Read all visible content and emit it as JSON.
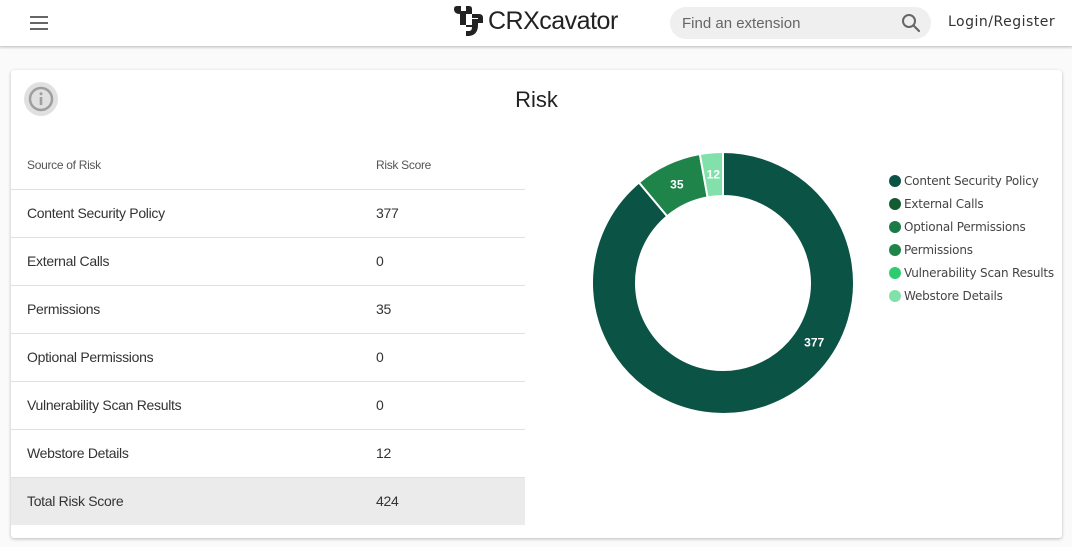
{
  "header": {
    "menu_icon": "hamburger-menu-icon",
    "logo_text": "CRXcavator",
    "search_placeholder": "Find an extension",
    "search_value": "",
    "search_icon": "search-icon",
    "login_label": "Login/Register"
  },
  "card": {
    "title": "Risk",
    "info_icon": "info-icon"
  },
  "table": {
    "headers": [
      "Source of Risk",
      "Risk Score"
    ],
    "rows": [
      {
        "source": "Content Security Policy",
        "score": "377"
      },
      {
        "source": "External Calls",
        "score": "0"
      },
      {
        "source": "Permissions",
        "score": "35"
      },
      {
        "source": "Optional Permissions",
        "score": "0"
      },
      {
        "source": "Vulnerability Scan Results",
        "score": "0"
      },
      {
        "source": "Webstore Details",
        "score": "12"
      }
    ],
    "total": {
      "label": "Total Risk Score",
      "score": "424"
    }
  },
  "colors": {
    "content_security_policy": "#0b5345",
    "external_calls": "#145a32",
    "optional_permissions": "#1b7a45",
    "permissions": "#1e8449",
    "vulnerability_scan_results": "#2ecc71",
    "webstore_details": "#82e0aa"
  },
  "chart_data": {
    "type": "pie",
    "subtype": "donut",
    "title": "Risk",
    "categories": [
      "Content Security Policy",
      "External Calls",
      "Optional Permissions",
      "Permissions",
      "Vulnerability Scan Results",
      "Webstore Details"
    ],
    "values": [
      377,
      0,
      0,
      35,
      0,
      12
    ],
    "colors": [
      "#0b5345",
      "#145a32",
      "#1b7a45",
      "#1e8449",
      "#2ecc71",
      "#82e0aa"
    ],
    "data_labels": [
      "377",
      "35",
      "12"
    ],
    "legend_position": "right",
    "total": 424
  }
}
